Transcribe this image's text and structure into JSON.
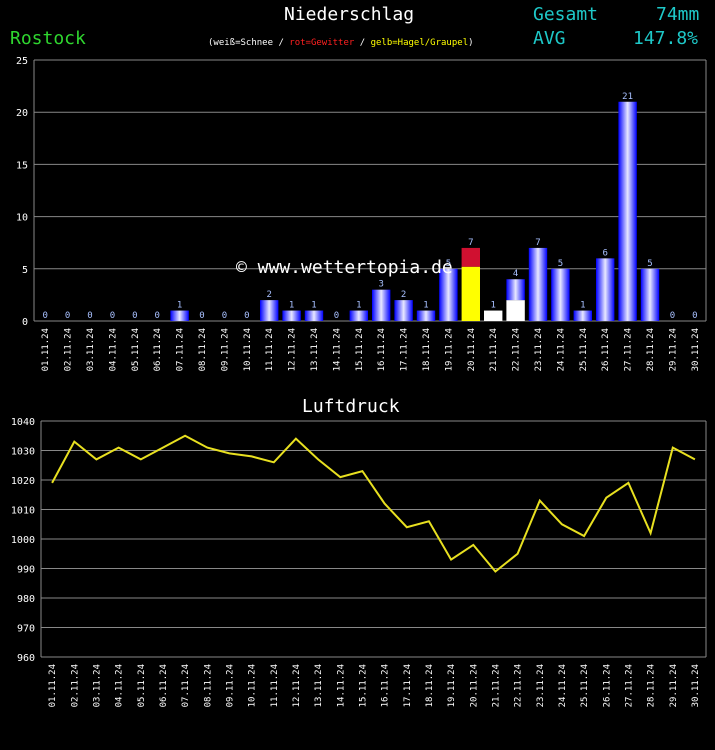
{
  "header": {
    "title": "Niederschlag",
    "station": "Rostock",
    "legend_open": "(weiß=Schnee / ",
    "legend_red": "rot=Gewitter",
    "legend_mid": " / ",
    "legend_yellow": "gelb=Hagel/Graupel",
    "legend_close": ")",
    "gesamt_label": "Gesamt",
    "gesamt_value": "74mm",
    "avg_label": "AVG",
    "avg_value": "147.8%",
    "watermark": "© www.wettertopia.de"
  },
  "pressure_title": "Luftdruck",
  "colors": {
    "rain": "#0000ff",
    "snow": "#ffffff",
    "thunder": "#d01030",
    "hail": "#ffff00",
    "line": "#e8e020",
    "grid": "#888888"
  },
  "chart_data": [
    {
      "type": "bar",
      "title": "Niederschlag",
      "categories": [
        "01.11.24",
        "02.11.24",
        "03.11.24",
        "04.11.24",
        "05.11.24",
        "06.11.24",
        "07.11.24",
        "08.11.24",
        "09.11.24",
        "10.11.24",
        "11.11.24",
        "12.11.24",
        "13.11.24",
        "14.11.24",
        "15.11.24",
        "16.11.24",
        "17.11.24",
        "18.11.24",
        "19.11.24",
        "20.11.24",
        "21.11.24",
        "22.11.24",
        "23.11.24",
        "24.11.24",
        "25.11.24",
        "26.11.24",
        "27.11.24",
        "28.11.24",
        "29.11.24",
        "30.11.24"
      ],
      "series": [
        {
          "values": [
            0,
            0,
            0,
            0,
            0,
            0,
            1,
            0,
            0,
            0,
            2,
            1,
            1,
            0,
            1,
            3,
            2,
            1,
            5,
            7,
            1,
            4,
            7,
            5,
            1,
            6,
            21,
            5,
            0,
            0
          ]
        }
      ],
      "segments": {
        "20.11.24": [
          {
            "kind": "hail",
            "value": 5.2
          },
          {
            "kind": "thunder",
            "value": 1.8
          }
        ],
        "21.11.24": [
          {
            "kind": "snow",
            "value": 1
          }
        ],
        "22.11.24": [
          {
            "kind": "snow",
            "value": 2
          },
          {
            "kind": "rain",
            "value": 2
          }
        ]
      },
      "ylim": [
        0,
        25
      ],
      "yticks": [
        0,
        5,
        10,
        15,
        20,
        25
      ],
      "grid": true
    },
    {
      "type": "line",
      "title": "Luftdruck",
      "categories": [
        "01.11.24",
        "02.11.24",
        "03.11.24",
        "04.11.24",
        "05.11.24",
        "06.11.24",
        "07.11.24",
        "08.11.24",
        "09.11.24",
        "10.11.24",
        "11.11.24",
        "12.11.24",
        "13.11.24",
        "14.11.24",
        "15.11.24",
        "16.11.24",
        "17.11.24",
        "18.11.24",
        "19.11.24",
        "20.11.24",
        "21.11.24",
        "22.11.24",
        "23.11.24",
        "24.11.24",
        "25.11.24",
        "26.11.24",
        "27.11.24",
        "28.11.24",
        "29.11.24",
        "30.11.24"
      ],
      "series": [
        {
          "values": [
            1019,
            1033,
            1027,
            1031,
            1027,
            1031,
            1035,
            1031,
            1029,
            1028,
            1026,
            1034,
            1027,
            1021,
            1023,
            1012,
            1004,
            1006,
            993,
            998,
            989,
            995,
            1013,
            1005,
            1001,
            1014,
            1019,
            1002,
            1031,
            1027
          ]
        }
      ],
      "ylim": [
        960,
        1040
      ],
      "yticks": [
        960,
        970,
        980,
        990,
        1000,
        1010,
        1020,
        1030,
        1040
      ],
      "grid": true
    }
  ]
}
